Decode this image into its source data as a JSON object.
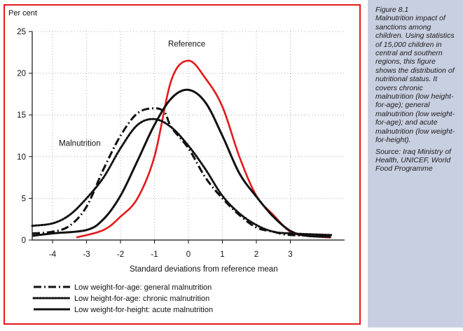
{
  "caption": {
    "heading": "Figure 8.1",
    "title": "Malnutrition impact of sanctions among children.",
    "body": "Using statistics of 15,000 children in central and southern regions, this figure shows the distribution of nutritional status. It covers chronic malnutrition (low height-for-age); general malnutrition (low weight-for-age); and acute malnutrition (low weight-for-height).",
    "source": "Source: Iraq Ministry of Health, UNICEF, World Food Programme"
  },
  "colors": {
    "reference": "#e3191b",
    "series": "#111111",
    "frame": "#e3191b",
    "grid": "#9a9a9a",
    "caption_bg": "#c8cfe0"
  },
  "chart_data": {
    "type": "line",
    "ylabel": "Per cent",
    "xlabel": "Standard deviations from reference mean",
    "xlim": [
      -4.6,
      4.6
    ],
    "ylim": [
      0,
      25
    ],
    "x_ticks": [
      -4,
      -3,
      -2,
      -1,
      0,
      1,
      2,
      3
    ],
    "y_ticks": [
      0,
      5,
      10,
      15,
      20,
      25
    ],
    "grid": "dotted",
    "annotations": [
      {
        "text": "Reference",
        "x": -0.05,
        "y": 23.2
      },
      {
        "text": "Malnutrition",
        "x": -3.2,
        "y": 11.3
      }
    ],
    "legend_position": "bottom",
    "series": [
      {
        "name": "Reference",
        "color": "#e3191b",
        "dash": "solid",
        "legend": false,
        "points": [
          [
            -3.3,
            0.3
          ],
          [
            -2.5,
            1.2
          ],
          [
            -2.0,
            2.8
          ],
          [
            -1.5,
            5.0
          ],
          [
            -1.0,
            10.0
          ],
          [
            -0.5,
            19.2
          ],
          [
            0.0,
            21.5
          ],
          [
            0.5,
            19.4
          ],
          [
            1.0,
            16.0
          ],
          [
            1.5,
            10.0
          ],
          [
            2.0,
            5.3
          ],
          [
            2.5,
            3.0
          ],
          [
            3.0,
            1.0
          ],
          [
            3.5,
            0.5
          ],
          [
            4.2,
            0.3
          ]
        ]
      },
      {
        "name": "Low weight-for-age: general malnutrition",
        "color": "#111111",
        "dash": "dashdot",
        "legend": true,
        "points": [
          [
            -4.6,
            0.8
          ],
          [
            -4.0,
            1.0
          ],
          [
            -3.5,
            1.7
          ],
          [
            -3.0,
            4.0
          ],
          [
            -2.5,
            8.5
          ],
          [
            -2.0,
            12.5
          ],
          [
            -1.5,
            15.2
          ],
          [
            -1.0,
            15.8
          ],
          [
            -0.7,
            15.3
          ],
          [
            -0.5,
            13.5
          ],
          [
            0.0,
            11.0
          ],
          [
            0.5,
            7.5
          ],
          [
            1.0,
            5.0
          ],
          [
            1.5,
            3.0
          ],
          [
            2.0,
            1.5
          ],
          [
            2.5,
            1.0
          ],
          [
            3.0,
            0.6
          ],
          [
            4.2,
            0.5
          ]
        ]
      },
      {
        "name": "Low height-for-age: chronic malnutrition",
        "color": "#111111",
        "dash": "dotted",
        "legend": true,
        "points": [
          [
            -4.6,
            1.7
          ],
          [
            -4.0,
            2.0
          ],
          [
            -3.5,
            3.0
          ],
          [
            -3.0,
            5.0
          ],
          [
            -2.5,
            7.5
          ],
          [
            -2.0,
            11.0
          ],
          [
            -1.5,
            13.8
          ],
          [
            -1.0,
            14.5
          ],
          [
            -0.5,
            13.5
          ],
          [
            0.0,
            11.3
          ],
          [
            0.5,
            8.5
          ],
          [
            1.0,
            5.3
          ],
          [
            1.5,
            3.2
          ],
          [
            2.0,
            1.8
          ],
          [
            2.5,
            1.0
          ],
          [
            3.0,
            0.8
          ],
          [
            4.2,
            0.6
          ]
        ]
      },
      {
        "name": "Low weight-for-height: acute malnutrition",
        "color": "#111111",
        "dash": "solid",
        "legend": true,
        "points": [
          [
            -4.6,
            0.5
          ],
          [
            -4.0,
            0.8
          ],
          [
            -3.0,
            1.2
          ],
          [
            -2.5,
            2.5
          ],
          [
            -2.0,
            5.3
          ],
          [
            -1.5,
            9.5
          ],
          [
            -1.0,
            13.8
          ],
          [
            -0.5,
            17.0
          ],
          [
            0.0,
            18.0
          ],
          [
            0.5,
            16.5
          ],
          [
            1.0,
            12.5
          ],
          [
            1.5,
            8.0
          ],
          [
            2.0,
            5.2
          ],
          [
            2.5,
            2.8
          ],
          [
            3.0,
            1.1
          ],
          [
            3.5,
            0.5
          ],
          [
            4.2,
            0.4
          ]
        ]
      }
    ]
  }
}
